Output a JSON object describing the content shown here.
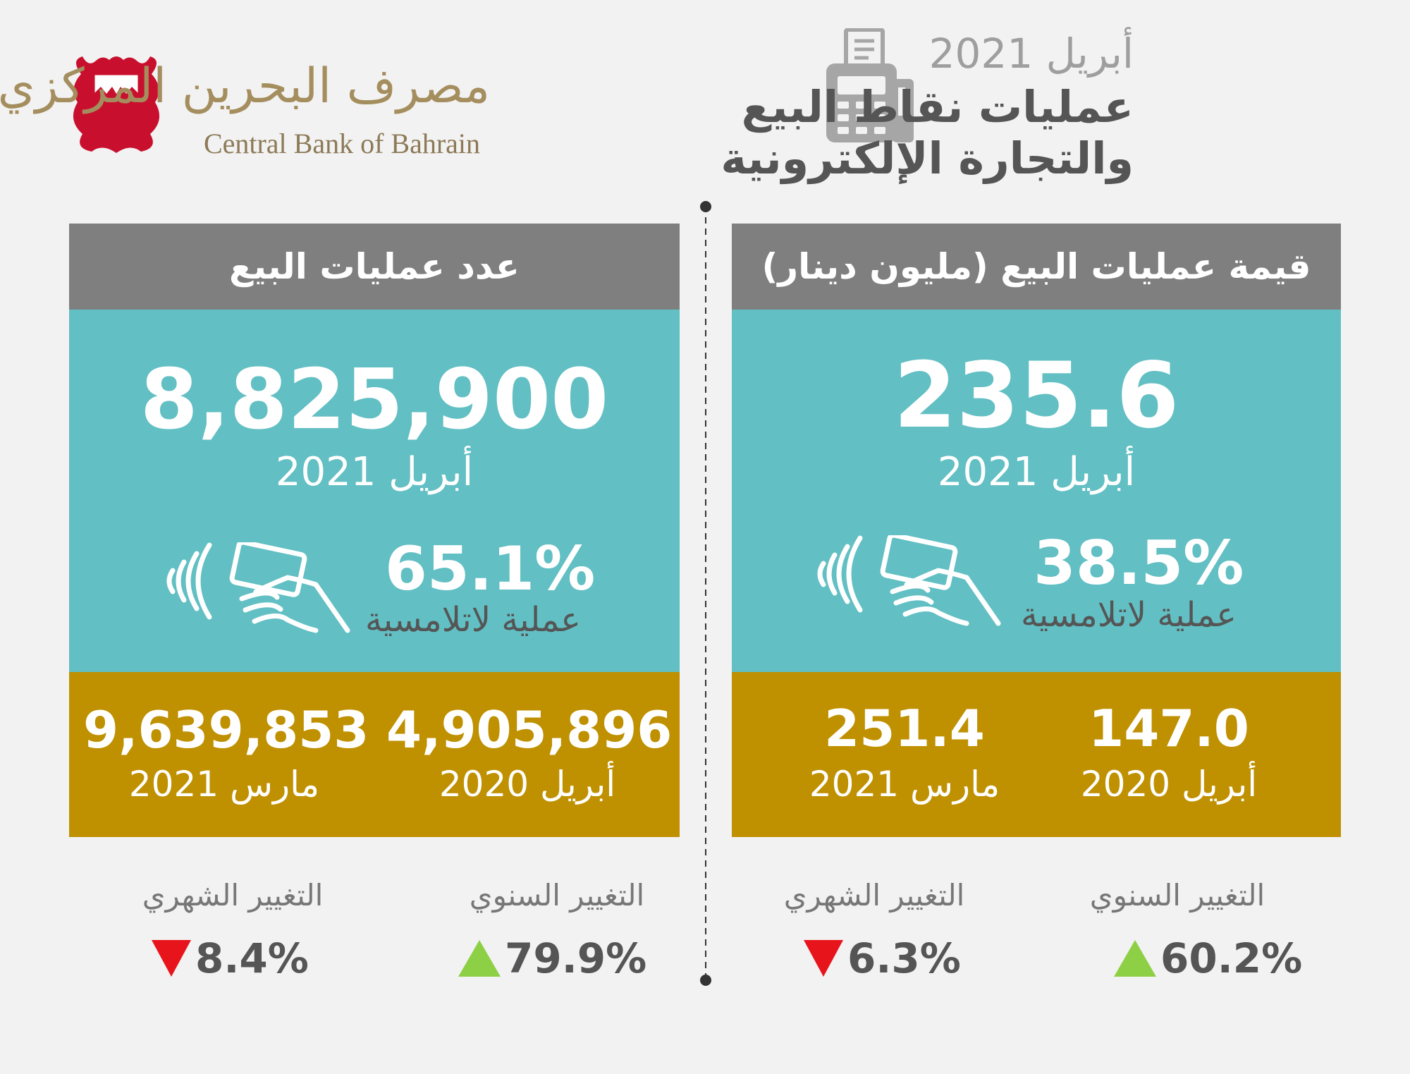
{
  "header": {
    "bank_name_ar": "مصرف البحرين المركزي",
    "bank_name_en": "Central Bank of Bahrain",
    "title_date": "أبريل 2021",
    "title_line1": "عمليات نقاط البيع",
    "title_line2": "والتجارة الإلكترونية"
  },
  "value_panel": {
    "header": "قيمة عمليات البيع (مليون دينار)",
    "main_value": "235.6",
    "main_date": "أبريل 2021",
    "contactless_pct": "38.5%",
    "contactless_label": "عملية لاتلامسية",
    "compare_prev_year_value": "147.0",
    "compare_prev_year_date": "أبريل 2020",
    "compare_prev_month_value": "251.4",
    "compare_prev_month_date": "مارس 2021",
    "annual_change_label": "التغيير السنوي",
    "annual_change_value": "60.2%",
    "annual_change_direction": "up",
    "monthly_change_label": "التغيير الشهري",
    "monthly_change_value": "6.3%",
    "monthly_change_direction": "down"
  },
  "count_panel": {
    "header": "عدد عمليات البيع",
    "main_value": "8,825,900",
    "main_date": "أبريل 2021",
    "contactless_pct": "65.1%",
    "contactless_label": "عملية لاتلامسية",
    "compare_prev_year_value": "4,905,896",
    "compare_prev_year_date": "أبريل 2020",
    "compare_prev_month_value": "9,639,853",
    "compare_prev_month_date": "مارس 2021",
    "annual_change_label": "التغيير السنوي",
    "annual_change_value": "79.9%",
    "annual_change_direction": "up",
    "monthly_change_label": "التغيير الشهري",
    "monthly_change_value": "8.4%",
    "monthly_change_direction": "down"
  },
  "colors": {
    "header_gray": "#7f7f7f",
    "teal": "#62bfc3",
    "gold": "#bf9000",
    "up_green": "#8ed045",
    "down_red": "#e8141b"
  },
  "icons": [
    "bahrain-emblem-icon",
    "pos-terminal-icon",
    "contactless-card-icon"
  ]
}
